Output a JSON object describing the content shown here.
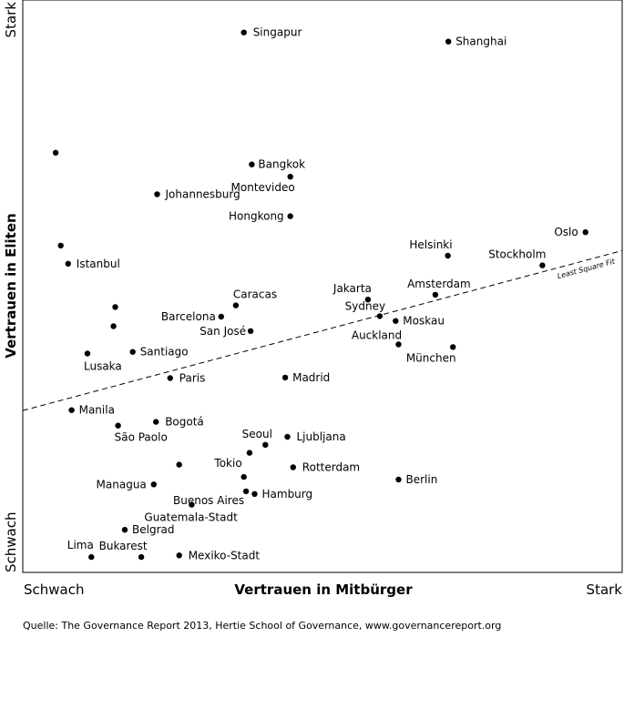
{
  "chart_data": {
    "type": "scatter",
    "xlabel": "Vertrauen in Mitbürger",
    "ylabel": "Vertrauen in Eliten",
    "x_low_label": "Schwach",
    "x_high_label": "Stark",
    "y_low_label": "Schwach",
    "y_high_label": "Stark",
    "xlim": [
      0,
      100
    ],
    "ylim": [
      0,
      100
    ],
    "grid": false,
    "trendline": {
      "label": "Least Square Fit",
      "start": [
        0,
        27.4
      ],
      "end": [
        100,
        55.7
      ]
    },
    "points": [
      {
        "name": "Singapur",
        "x": 36.6,
        "y": 97.5
      },
      {
        "name": "Shanghai",
        "x": 72.7,
        "y": 95.8
      },
      {
        "name": "",
        "x": 3.4,
        "y": 75.0
      },
      {
        "name": "Bangkok",
        "x": 38.0,
        "y": 72.8
      },
      {
        "name": "Montevideo",
        "x": 44.8,
        "y": 70.5
      },
      {
        "name": "Johannesburg",
        "x": 21.3,
        "y": 67.2
      },
      {
        "name": "Hongkong",
        "x": 44.8,
        "y": 63.1
      },
      {
        "name": "Oslo",
        "x": 96.9,
        "y": 60.1
      },
      {
        "name": "",
        "x": 4.3,
        "y": 57.6
      },
      {
        "name": "Helsinki",
        "x": 72.6,
        "y": 55.7
      },
      {
        "name": "Stockholm",
        "x": 89.3,
        "y": 53.9
      },
      {
        "name": "Istanbul",
        "x": 5.6,
        "y": 54.2
      },
      {
        "name": "Amsterdam",
        "x": 70.4,
        "y": 48.4
      },
      {
        "name": "Jakarta",
        "x": 58.5,
        "y": 47.5
      },
      {
        "name": "Caracas",
        "x": 35.2,
        "y": 46.4
      },
      {
        "name": "",
        "x": 13.9,
        "y": 46.1
      },
      {
        "name": "Barcelona",
        "x": 32.6,
        "y": 44.3
      },
      {
        "name": "Sydney",
        "x": 60.6,
        "y": 44.4
      },
      {
        "name": "Moskau",
        "x": 63.4,
        "y": 43.5
      },
      {
        "name": "",
        "x": 13.6,
        "y": 42.5
      },
      {
        "name": "San José",
        "x": 37.8,
        "y": 41.6
      },
      {
        "name": "Auckland",
        "x": 63.9,
        "y": 39.1
      },
      {
        "name": "München",
        "x": 73.5,
        "y": 38.6
      },
      {
        "name": "Santiago",
        "x": 17.0,
        "y": 37.7
      },
      {
        "name": "Lusaka",
        "x": 9.0,
        "y": 37.4
      },
      {
        "name": "Paris",
        "x": 23.6,
        "y": 32.8
      },
      {
        "name": "Madrid",
        "x": 43.9,
        "y": 32.9
      },
      {
        "name": "Manila",
        "x": 6.2,
        "y": 26.8
      },
      {
        "name": "Bogotá",
        "x": 21.1,
        "y": 24.6
      },
      {
        "name": "São Paolo",
        "x": 14.4,
        "y": 23.9
      },
      {
        "name": "Ljubljana",
        "x": 44.3,
        "y": 21.8
      },
      {
        "name": "Seoul",
        "x": 40.4,
        "y": 20.3
      },
      {
        "name": "",
        "x": 37.6,
        "y": 18.8
      },
      {
        "name": "",
        "x": 25.2,
        "y": 16.6
      },
      {
        "name": "Tokio",
        "x": 36.6,
        "y": 14.3
      },
      {
        "name": "Rotterdam",
        "x": 45.3,
        "y": 16.1
      },
      {
        "name": "Berlin",
        "x": 63.9,
        "y": 13.8
      },
      {
        "name": "Managua",
        "x": 20.7,
        "y": 12.9
      },
      {
        "name": "Buenos Aires",
        "x": 37.0,
        "y": 11.6
      },
      {
        "name": "Hamburg",
        "x": 38.5,
        "y": 11.1
      },
      {
        "name": "Guatemala-Stadt",
        "x": 27.4,
        "y": 9.1
      },
      {
        "name": "Belgrad",
        "x": 15.6,
        "y": 4.4
      },
      {
        "name": "Lima",
        "x": 9.7,
        "y": -0.7
      },
      {
        "name": "Bukarest",
        "x": 18.5,
        "y": -0.7
      },
      {
        "name": "Mexiko-Stadt",
        "x": 25.2,
        "y": -0.4
      }
    ]
  },
  "source": "Quelle: The Governance Report 2013, Hertie School of Governance, www.governancereport.org"
}
